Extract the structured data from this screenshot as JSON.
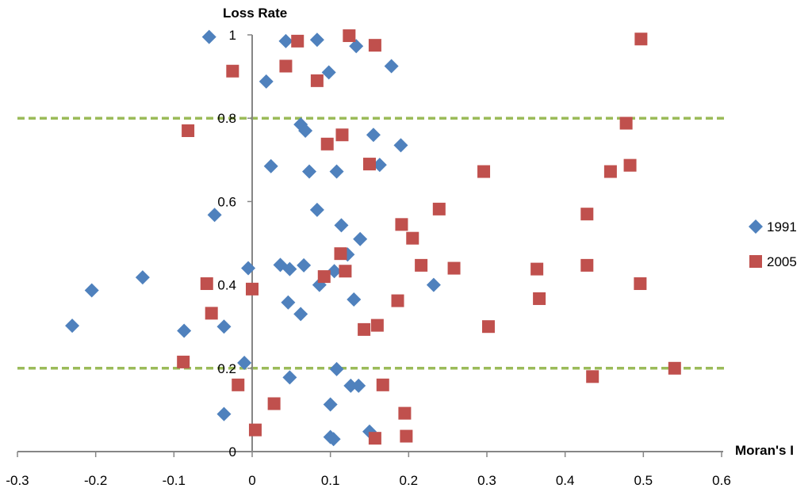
{
  "chart_data": {
    "type": "scatter",
    "title": "",
    "xlabel": "Moran's I",
    "ylabel": "Loss Rate",
    "xlim": [
      -0.3,
      0.6
    ],
    "ylim": [
      0,
      1
    ],
    "x_ticks": [
      "-0.3",
      "-0.2",
      "-0.1",
      "0",
      "0.1",
      "0.2",
      "0.3",
      "0.4",
      "0.5",
      "0.6"
    ],
    "y_ticks": [
      "0",
      "0.2",
      "0.4",
      "0.6",
      "0.8",
      "1"
    ],
    "reference_lines": [
      0.2,
      0.8
    ],
    "reference_line_color": "#9BBB59",
    "legend_position": "right",
    "series": [
      {
        "name": "1991",
        "marker": "diamond",
        "color": "#4F81BD",
        "points": [
          [
            -0.055,
            0.995
          ],
          [
            0.043,
            0.985
          ],
          [
            0.083,
            0.988
          ],
          [
            0.133,
            0.973
          ],
          [
            0.178,
            0.925
          ],
          [
            0.018,
            0.888
          ],
          [
            0.098,
            0.91
          ],
          [
            0.062,
            0.785
          ],
          [
            0.068,
            0.77
          ],
          [
            0.155,
            0.76
          ],
          [
            0.19,
            0.735
          ],
          [
            0.024,
            0.685
          ],
          [
            0.073,
            0.672
          ],
          [
            0.108,
            0.672
          ],
          [
            0.163,
            0.688
          ],
          [
            -0.048,
            0.568
          ],
          [
            0.083,
            0.58
          ],
          [
            0.114,
            0.543
          ],
          [
            0.138,
            0.51
          ],
          [
            0.122,
            0.473
          ],
          [
            -0.14,
            0.418
          ],
          [
            -0.205,
            0.387
          ],
          [
            -0.005,
            0.44
          ],
          [
            0.036,
            0.448
          ],
          [
            0.048,
            0.438
          ],
          [
            0.066,
            0.447
          ],
          [
            0.105,
            0.433
          ],
          [
            0.232,
            0.4
          ],
          [
            0.086,
            0.4
          ],
          [
            0.046,
            0.358
          ],
          [
            0.13,
            0.365
          ],
          [
            0.062,
            0.33
          ],
          [
            -0.23,
            0.302
          ],
          [
            -0.087,
            0.29
          ],
          [
            -0.036,
            0.3
          ],
          [
            -0.01,
            0.213
          ],
          [
            0.108,
            0.198
          ],
          [
            0.048,
            0.178
          ],
          [
            0.126,
            0.158
          ],
          [
            0.136,
            0.158
          ],
          [
            -0.036,
            0.09
          ],
          [
            0.1,
            0.113
          ],
          [
            0.1,
            0.035
          ],
          [
            0.104,
            0.03
          ],
          [
            0.15,
            0.048
          ]
        ]
      },
      {
        "name": "2005",
        "marker": "square",
        "color": "#C0504D",
        "points": [
          [
            0.058,
            0.985
          ],
          [
            0.124,
            0.998
          ],
          [
            0.157,
            0.975
          ],
          [
            0.497,
            0.99
          ],
          [
            -0.025,
            0.913
          ],
          [
            0.043,
            0.925
          ],
          [
            0.083,
            0.89
          ],
          [
            -0.082,
            0.77
          ],
          [
            0.096,
            0.738
          ],
          [
            0.115,
            0.76
          ],
          [
            0.478,
            0.788
          ],
          [
            0.15,
            0.69
          ],
          [
            0.296,
            0.672
          ],
          [
            0.458,
            0.672
          ],
          [
            0.483,
            0.687
          ],
          [
            0.239,
            0.582
          ],
          [
            0.428,
            0.57
          ],
          [
            0.191,
            0.545
          ],
          [
            0.205,
            0.512
          ],
          [
            0.113,
            0.475
          ],
          [
            0.216,
            0.447
          ],
          [
            0.258,
            0.44
          ],
          [
            0.364,
            0.438
          ],
          [
            0.428,
            0.447
          ],
          [
            0.092,
            0.42
          ],
          [
            0.119,
            0.433
          ],
          [
            -0.058,
            0.403
          ],
          [
            0.0,
            0.39
          ],
          [
            0.496,
            0.403
          ],
          [
            0.186,
            0.362
          ],
          [
            0.367,
            0.367
          ],
          [
            -0.052,
            0.332
          ],
          [
            0.16,
            0.303
          ],
          [
            0.143,
            0.293
          ],
          [
            0.302,
            0.3
          ],
          [
            -0.088,
            0.215
          ],
          [
            0.54,
            0.2
          ],
          [
            -0.018,
            0.16
          ],
          [
            0.167,
            0.16
          ],
          [
            0.435,
            0.18
          ],
          [
            0.028,
            0.115
          ],
          [
            0.195,
            0.092
          ],
          [
            0.004,
            0.052
          ],
          [
            0.157,
            0.032
          ],
          [
            0.197,
            0.037
          ]
        ]
      }
    ]
  }
}
